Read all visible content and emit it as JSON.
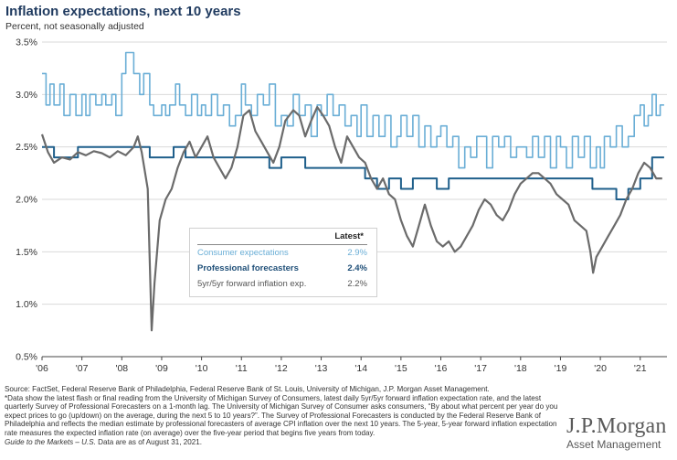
{
  "chart_data": {
    "type": "line",
    "title": "Inflation expectations, next 10 years",
    "subtitle": "Percent, not seasonally adjusted",
    "x_tick_labels": [
      "'06",
      "'07",
      "'08",
      "'09",
      "'10",
      "'11",
      "'12",
      "'13",
      "'14",
      "'15",
      "'16",
      "'17",
      "'18",
      "'19",
      "'20",
      "'21"
    ],
    "y_tick_labels": [
      "0.5%",
      "1.0%",
      "1.5%",
      "2.0%",
      "2.5%",
      "3.0%",
      "3.5%"
    ],
    "ylim": [
      0.5,
      3.5
    ],
    "xlim": [
      2006.0,
      2021.67
    ],
    "grid": "horizontal",
    "legend": {
      "header": "Latest*",
      "placement": "center",
      "entries": [
        {
          "name": "Consumer expectations",
          "value": "2.9%",
          "color": "#6aaed6"
        },
        {
          "name": "Professional forecasters",
          "value": "2.4%",
          "color": "#1f5f8b"
        },
        {
          "name": "5yr/5yr forward inflation exp.",
          "value": "2.2%",
          "color": "#6b6b6b"
        }
      ]
    },
    "series": [
      {
        "name": "Consumer expectations",
        "color": "#6aaed6",
        "points": [
          [
            2006.0,
            3.2
          ],
          [
            2006.1,
            2.9
          ],
          [
            2006.2,
            3.1
          ],
          [
            2006.3,
            2.9
          ],
          [
            2006.45,
            3.1
          ],
          [
            2006.55,
            2.8
          ],
          [
            2006.7,
            3.0
          ],
          [
            2006.85,
            2.8
          ],
          [
            2007.0,
            3.0
          ],
          [
            2007.1,
            2.8
          ],
          [
            2007.2,
            3.0
          ],
          [
            2007.35,
            2.9
          ],
          [
            2007.5,
            3.0
          ],
          [
            2007.6,
            2.9
          ],
          [
            2007.75,
            3.0
          ],
          [
            2007.85,
            2.8
          ],
          [
            2008.0,
            3.2
          ],
          [
            2008.1,
            3.4
          ],
          [
            2008.2,
            3.4
          ],
          [
            2008.3,
            3.2
          ],
          [
            2008.45,
            3.0
          ],
          [
            2008.55,
            3.2
          ],
          [
            2008.7,
            2.9
          ],
          [
            2008.8,
            2.8
          ],
          [
            2009.0,
            2.9
          ],
          [
            2009.1,
            2.8
          ],
          [
            2009.2,
            2.9
          ],
          [
            2009.35,
            3.1
          ],
          [
            2009.45,
            2.9
          ],
          [
            2009.6,
            2.8
          ],
          [
            2009.75,
            3.0
          ],
          [
            2009.9,
            2.8
          ],
          [
            2010.0,
            2.9
          ],
          [
            2010.1,
            2.8
          ],
          [
            2010.25,
            3.0
          ],
          [
            2010.4,
            2.8
          ],
          [
            2010.55,
            2.9
          ],
          [
            2010.7,
            2.7
          ],
          [
            2010.85,
            2.8
          ],
          [
            2011.0,
            3.1
          ],
          [
            2011.1,
            2.9
          ],
          [
            2011.25,
            2.8
          ],
          [
            2011.4,
            3.0
          ],
          [
            2011.55,
            2.9
          ],
          [
            2011.7,
            3.1
          ],
          [
            2011.85,
            2.7
          ],
          [
            2012.0,
            2.8
          ],
          [
            2012.15,
            2.7
          ],
          [
            2012.3,
            3.0
          ],
          [
            2012.45,
            2.8
          ],
          [
            2012.6,
            2.9
          ],
          [
            2012.75,
            2.6
          ],
          [
            2012.9,
            2.9
          ],
          [
            2013.0,
            2.8
          ],
          [
            2013.15,
            3.0
          ],
          [
            2013.3,
            2.8
          ],
          [
            2013.45,
            2.9
          ],
          [
            2013.6,
            2.7
          ],
          [
            2013.75,
            2.8
          ],
          [
            2013.9,
            2.6
          ],
          [
            2014.0,
            2.9
          ],
          [
            2014.15,
            2.6
          ],
          [
            2014.3,
            2.8
          ],
          [
            2014.45,
            2.6
          ],
          [
            2014.6,
            2.8
          ],
          [
            2014.75,
            2.5
          ],
          [
            2014.9,
            2.6
          ],
          [
            2015.0,
            2.8
          ],
          [
            2015.15,
            2.6
          ],
          [
            2015.3,
            2.8
          ],
          [
            2015.45,
            2.5
          ],
          [
            2015.6,
            2.7
          ],
          [
            2015.75,
            2.5
          ],
          [
            2015.9,
            2.6
          ],
          [
            2016.0,
            2.7
          ],
          [
            2016.15,
            2.5
          ],
          [
            2016.3,
            2.6
          ],
          [
            2016.45,
            2.3
          ],
          [
            2016.6,
            2.5
          ],
          [
            2016.75,
            2.4
          ],
          [
            2016.9,
            2.6
          ],
          [
            2017.0,
            2.6
          ],
          [
            2017.15,
            2.3
          ],
          [
            2017.3,
            2.6
          ],
          [
            2017.45,
            2.5
          ],
          [
            2017.6,
            2.6
          ],
          [
            2017.75,
            2.4
          ],
          [
            2017.9,
            2.5
          ],
          [
            2018.0,
            2.5
          ],
          [
            2018.15,
            2.4
          ],
          [
            2018.3,
            2.6
          ],
          [
            2018.45,
            2.4
          ],
          [
            2018.6,
            2.6
          ],
          [
            2018.75,
            2.3
          ],
          [
            2018.9,
            2.6
          ],
          [
            2019.0,
            2.5
          ],
          [
            2019.15,
            2.3
          ],
          [
            2019.3,
            2.6
          ],
          [
            2019.45,
            2.4
          ],
          [
            2019.6,
            2.6
          ],
          [
            2019.75,
            2.3
          ],
          [
            2019.9,
            2.5
          ],
          [
            2020.0,
            2.3
          ],
          [
            2020.1,
            2.6
          ],
          [
            2020.25,
            2.5
          ],
          [
            2020.4,
            2.7
          ],
          [
            2020.55,
            2.5
          ],
          [
            2020.7,
            2.6
          ],
          [
            2020.85,
            2.8
          ],
          [
            2021.0,
            2.9
          ],
          [
            2021.1,
            2.7
          ],
          [
            2021.2,
            2.8
          ],
          [
            2021.3,
            3.0
          ],
          [
            2021.4,
            2.8
          ],
          [
            2021.5,
            2.9
          ],
          [
            2021.6,
            2.9
          ]
        ]
      },
      {
        "name": "Professional forecasters",
        "color": "#1f5f8b",
        "points": [
          [
            2006.0,
            2.5
          ],
          [
            2006.3,
            2.4
          ],
          [
            2006.6,
            2.4
          ],
          [
            2006.9,
            2.5
          ],
          [
            2007.2,
            2.5
          ],
          [
            2007.5,
            2.5
          ],
          [
            2007.8,
            2.5
          ],
          [
            2008.1,
            2.5
          ],
          [
            2008.4,
            2.5
          ],
          [
            2008.7,
            2.4
          ],
          [
            2009.0,
            2.4
          ],
          [
            2009.3,
            2.5
          ],
          [
            2009.6,
            2.4
          ],
          [
            2009.9,
            2.4
          ],
          [
            2010.2,
            2.4
          ],
          [
            2010.5,
            2.4
          ],
          [
            2010.8,
            2.4
          ],
          [
            2011.1,
            2.4
          ],
          [
            2011.4,
            2.4
          ],
          [
            2011.7,
            2.3
          ],
          [
            2012.0,
            2.4
          ],
          [
            2012.3,
            2.4
          ],
          [
            2012.6,
            2.3
          ],
          [
            2012.9,
            2.3
          ],
          [
            2013.2,
            2.3
          ],
          [
            2013.5,
            2.3
          ],
          [
            2013.8,
            2.3
          ],
          [
            2014.1,
            2.2
          ],
          [
            2014.4,
            2.1
          ],
          [
            2014.7,
            2.2
          ],
          [
            2015.0,
            2.1
          ],
          [
            2015.3,
            2.2
          ],
          [
            2015.6,
            2.2
          ],
          [
            2015.9,
            2.1
          ],
          [
            2016.2,
            2.2
          ],
          [
            2016.5,
            2.2
          ],
          [
            2016.8,
            2.2
          ],
          [
            2017.1,
            2.2
          ],
          [
            2017.4,
            2.2
          ],
          [
            2017.7,
            2.2
          ],
          [
            2018.0,
            2.2
          ],
          [
            2018.3,
            2.2
          ],
          [
            2018.6,
            2.2
          ],
          [
            2018.9,
            2.2
          ],
          [
            2019.2,
            2.2
          ],
          [
            2019.5,
            2.2
          ],
          [
            2019.8,
            2.1
          ],
          [
            2020.1,
            2.1
          ],
          [
            2020.4,
            2.0
          ],
          [
            2020.7,
            2.1
          ],
          [
            2021.0,
            2.2
          ],
          [
            2021.3,
            2.4
          ],
          [
            2021.6,
            2.4
          ]
        ]
      },
      {
        "name": "5yr/5yr forward inflation exp.",
        "color": "#6b6b6b",
        "points": [
          [
            2006.0,
            2.62
          ],
          [
            2006.15,
            2.45
          ],
          [
            2006.3,
            2.35
          ],
          [
            2006.5,
            2.4
          ],
          [
            2006.7,
            2.38
          ],
          [
            2006.9,
            2.45
          ],
          [
            2007.1,
            2.42
          ],
          [
            2007.3,
            2.46
          ],
          [
            2007.5,
            2.44
          ],
          [
            2007.7,
            2.4
          ],
          [
            2007.9,
            2.46
          ],
          [
            2008.1,
            2.42
          ],
          [
            2008.3,
            2.5
          ],
          [
            2008.4,
            2.6
          ],
          [
            2008.5,
            2.45
          ],
          [
            2008.65,
            2.1
          ],
          [
            2008.75,
            0.75
          ],
          [
            2008.82,
            1.2
          ],
          [
            2008.95,
            1.8
          ],
          [
            2009.1,
            2.0
          ],
          [
            2009.25,
            2.1
          ],
          [
            2009.4,
            2.3
          ],
          [
            2009.55,
            2.45
          ],
          [
            2009.7,
            2.55
          ],
          [
            2009.85,
            2.4
          ],
          [
            2010.0,
            2.5
          ],
          [
            2010.15,
            2.6
          ],
          [
            2010.3,
            2.4
          ],
          [
            2010.45,
            2.3
          ],
          [
            2010.6,
            2.2
          ],
          [
            2010.75,
            2.3
          ],
          [
            2010.9,
            2.5
          ],
          [
            2011.05,
            2.8
          ],
          [
            2011.2,
            2.85
          ],
          [
            2011.35,
            2.65
          ],
          [
            2011.5,
            2.55
          ],
          [
            2011.65,
            2.45
          ],
          [
            2011.8,
            2.35
          ],
          [
            2011.95,
            2.5
          ],
          [
            2012.1,
            2.75
          ],
          [
            2012.3,
            2.85
          ],
          [
            2012.45,
            2.8
          ],
          [
            2012.6,
            2.6
          ],
          [
            2012.75,
            2.75
          ],
          [
            2012.9,
            2.88
          ],
          [
            2013.05,
            2.8
          ],
          [
            2013.2,
            2.7
          ],
          [
            2013.35,
            2.5
          ],
          [
            2013.5,
            2.35
          ],
          [
            2013.65,
            2.6
          ],
          [
            2013.8,
            2.5
          ],
          [
            2013.95,
            2.4
          ],
          [
            2014.1,
            2.35
          ],
          [
            2014.25,
            2.2
          ],
          [
            2014.4,
            2.1
          ],
          [
            2014.55,
            2.2
          ],
          [
            2014.7,
            2.05
          ],
          [
            2014.85,
            2.0
          ],
          [
            2015.0,
            1.8
          ],
          [
            2015.15,
            1.65
          ],
          [
            2015.3,
            1.55
          ],
          [
            2015.45,
            1.75
          ],
          [
            2015.6,
            1.95
          ],
          [
            2015.75,
            1.75
          ],
          [
            2015.9,
            1.6
          ],
          [
            2016.05,
            1.55
          ],
          [
            2016.2,
            1.6
          ],
          [
            2016.35,
            1.5
          ],
          [
            2016.5,
            1.55
          ],
          [
            2016.65,
            1.65
          ],
          [
            2016.8,
            1.75
          ],
          [
            2016.95,
            1.9
          ],
          [
            2017.1,
            2.0
          ],
          [
            2017.25,
            1.95
          ],
          [
            2017.4,
            1.85
          ],
          [
            2017.55,
            1.8
          ],
          [
            2017.7,
            1.9
          ],
          [
            2017.85,
            2.05
          ],
          [
            2018.0,
            2.15
          ],
          [
            2018.15,
            2.2
          ],
          [
            2018.3,
            2.25
          ],
          [
            2018.45,
            2.25
          ],
          [
            2018.6,
            2.2
          ],
          [
            2018.75,
            2.15
          ],
          [
            2018.9,
            2.05
          ],
          [
            2019.05,
            2.0
          ],
          [
            2019.2,
            1.95
          ],
          [
            2019.35,
            1.8
          ],
          [
            2019.5,
            1.75
          ],
          [
            2019.65,
            1.7
          ],
          [
            2019.75,
            1.5
          ],
          [
            2019.82,
            1.3
          ],
          [
            2019.9,
            1.45
          ],
          [
            2020.05,
            1.55
          ],
          [
            2020.2,
            1.65
          ],
          [
            2020.35,
            1.75
          ],
          [
            2020.5,
            1.85
          ],
          [
            2020.65,
            2.0
          ],
          [
            2020.8,
            2.1
          ],
          [
            2020.95,
            2.25
          ],
          [
            2021.1,
            2.35
          ],
          [
            2021.25,
            2.3
          ],
          [
            2021.4,
            2.2
          ],
          [
            2021.55,
            2.2
          ]
        ]
      }
    ]
  },
  "source_lines": [
    "Source: FactSet, Federal Reserve Bank of Philadelphia, Federal Reserve Bank of St. Louis, University of Michigan, J.P. Morgan Asset Management.",
    "*Data show the latest flash or final reading from the University of Michigan Survey of Consumers, latest daily 5yr/5yr forward inflation expectation rate, and the latest quarterly Survey of Professional Forecasters on a 1-month lag. The University of Michigan Survey of Consumer asks consumers, “By about what percent per year do you expect prices to go (up/down) on the average, during the next 5 to 10 years?”. The Survey of Professional Forecasters is conducted by the Federal Reserve Bank of Philadelphia and reflects the median estimate by professional forecasters of average CPI inflation over the next 10 years. The 5-year, 5-year forward inflation expectation rate measures the expected inflation rate (on average) over the five-year period that begins five years from today."
  ],
  "guide": {
    "italic": "Guide to the Markets – U.S.",
    "rest": " Data are as of August 31, 2021."
  },
  "logo": {
    "main": "J.P.Morgan",
    "sub": "Asset Management"
  }
}
